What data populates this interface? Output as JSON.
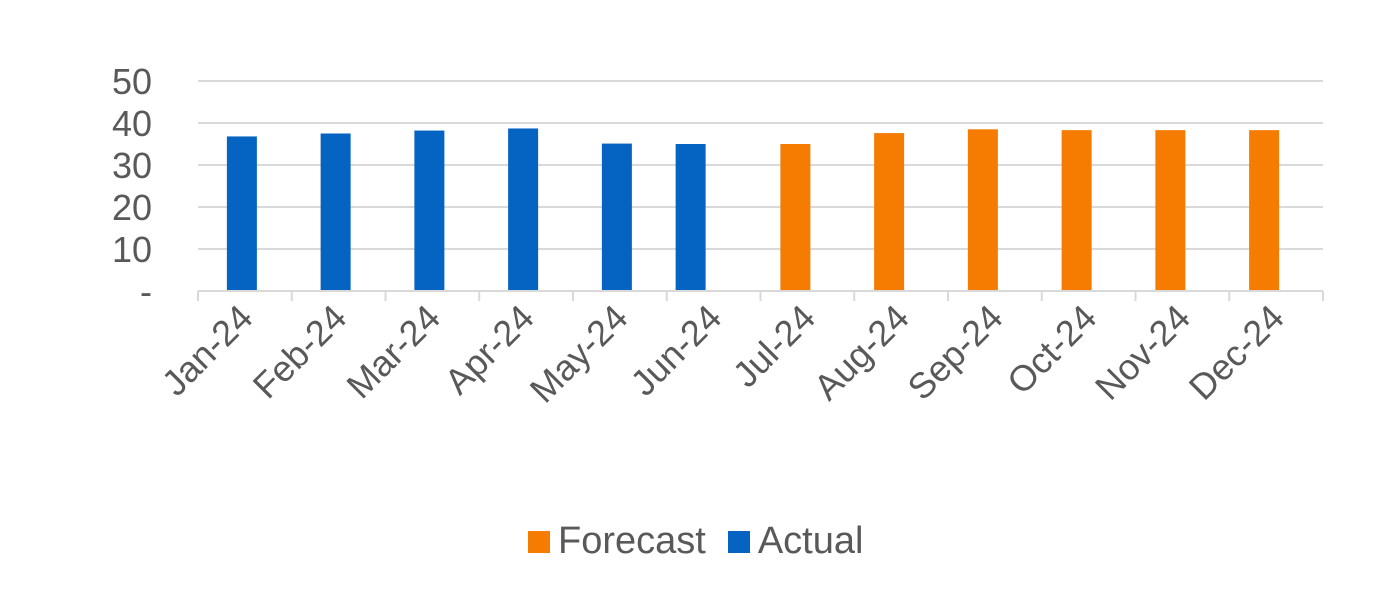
{
  "chart_data": {
    "type": "bar",
    "categories": [
      "Jan-24",
      "Feb-24",
      "Mar-24",
      "Apr-24",
      "May-24",
      "Jun-24",
      "Jul-24",
      "Aug-24",
      "Sep-24",
      "Oct-24",
      "Nov-24",
      "Dec-24"
    ],
    "values": [
      36.8,
      37.5,
      38.2,
      38.7,
      35.1,
      35.0,
      35.0,
      37.6,
      38.5,
      38.3,
      38.3,
      38.3
    ],
    "series_kind": [
      "Actual",
      "Actual",
      "Actual",
      "Actual",
      "Actual",
      "Actual",
      "Forecast",
      "Forecast",
      "Forecast",
      "Forecast",
      "Forecast",
      "Forecast"
    ],
    "series": [
      {
        "name": "Actual",
        "color": "#0563C1"
      },
      {
        "name": "Forecast",
        "color": "#F57C00"
      }
    ],
    "y_ticks": [
      "-",
      "10",
      "20",
      "30",
      "40",
      "50"
    ],
    "y_tick_values": [
      0,
      10,
      20,
      30,
      40,
      50
    ],
    "ylim": [
      0,
      50
    ],
    "grid": true,
    "legend_position": "bottom",
    "legend_order": [
      "Forecast",
      "Actual"
    ],
    "title": "",
    "xlabel": "",
    "ylabel": ""
  }
}
